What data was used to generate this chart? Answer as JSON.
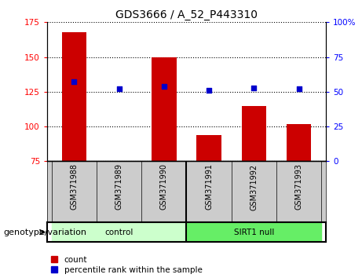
{
  "title": "GDS3666 / A_52_P443310",
  "samples": [
    "GSM371988",
    "GSM371989",
    "GSM371990",
    "GSM371991",
    "GSM371992",
    "GSM371993"
  ],
  "counts": [
    168,
    75,
    150,
    94,
    115,
    102
  ],
  "percentiles": [
    57,
    52,
    54,
    51,
    53,
    52
  ],
  "ylim_left": [
    75,
    175
  ],
  "ylim_right": [
    0,
    100
  ],
  "yticks_left": [
    75,
    100,
    125,
    150,
    175
  ],
  "yticks_right": [
    0,
    25,
    50,
    75,
    100
  ],
  "bar_color": "#cc0000",
  "dot_color": "#0000cc",
  "group_colors": [
    "#ccffcc",
    "#66ee66"
  ],
  "xlabel_area_color": "#cccccc",
  "bottom_label": "genotype/variation",
  "group_labels": [
    "control",
    "SIRT1 null"
  ],
  "legend_count_label": "count",
  "legend_percentile_label": "percentile rank within the sample",
  "title_fontsize": 10,
  "tick_fontsize": 7.5,
  "label_fontsize": 8,
  "bar_width": 0.55
}
